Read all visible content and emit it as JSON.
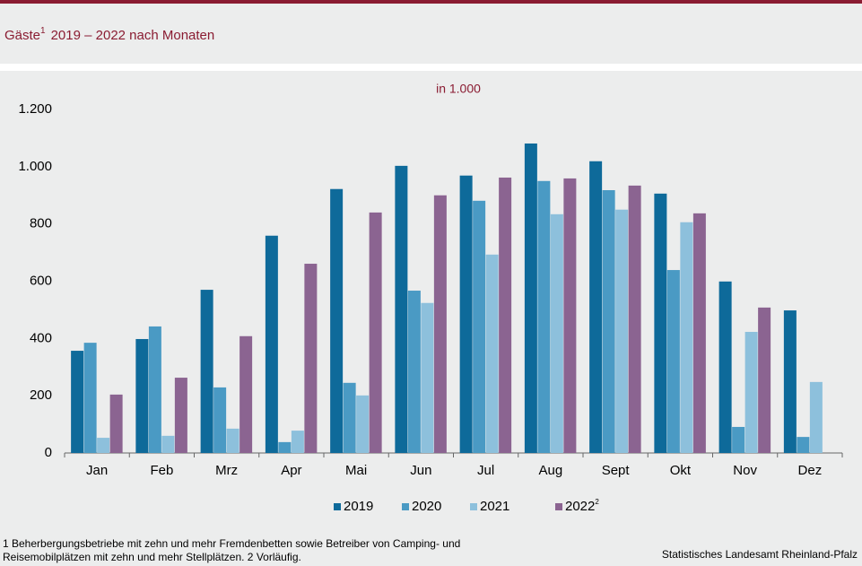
{
  "chart_data": {
    "type": "bar",
    "title": "Gäste",
    "title_sup": "1",
    "title_rest": "2019  – 2022  nach Monaten",
    "subtitle": "in 1.000",
    "categories": [
      "Jan",
      "Feb",
      "Mrz",
      "Apr",
      "Mai",
      "Jun",
      "Jul",
      "Aug",
      "Sept",
      "Okt",
      "Nov",
      "Dez"
    ],
    "series": [
      {
        "name": "2019",
        "color": "#0e6a9a",
        "values": [
          357,
          398,
          570,
          759,
          922,
          1003,
          969,
          1081,
          1019,
          906,
          599,
          498
        ]
      },
      {
        "name": "2020",
        "color": "#4a9ac4",
        "values": [
          385,
          442,
          229,
          38,
          245,
          567,
          881,
          950,
          918,
          639,
          91,
          56
        ]
      },
      {
        "name": "2021",
        "color": "#8dc0dc",
        "values": [
          53,
          60,
          85,
          78,
          201,
          524,
          693,
          834,
          850,
          806,
          423,
          248
        ]
      },
      {
        "name": "2022",
        "name_sup": "2",
        "color": "#8b6491",
        "values": [
          204,
          263,
          408,
          661,
          840,
          900,
          962,
          959,
          934,
          837,
          508,
          null
        ]
      }
    ],
    "ylim": [
      0,
      1200
    ],
    "yticks": [
      0,
      200,
      400,
      600,
      800,
      {
        "value": 1000,
        "label": "1.000"
      },
      {
        "value": 1200,
        "label": "1.200"
      }
    ],
    "grid": false,
    "footnote_1": "1 Beherbergungsbetriebe  mit zehn und mehr Fremdenbetten  sowie Betreiber von Camping-  und",
    "footnote_2": "Reisemobilplätzen  mit zehn und mehr Stellplätzen. 2 Vorläufig.",
    "source": "Statistisches Landesamt Rheinland-Pfalz"
  }
}
